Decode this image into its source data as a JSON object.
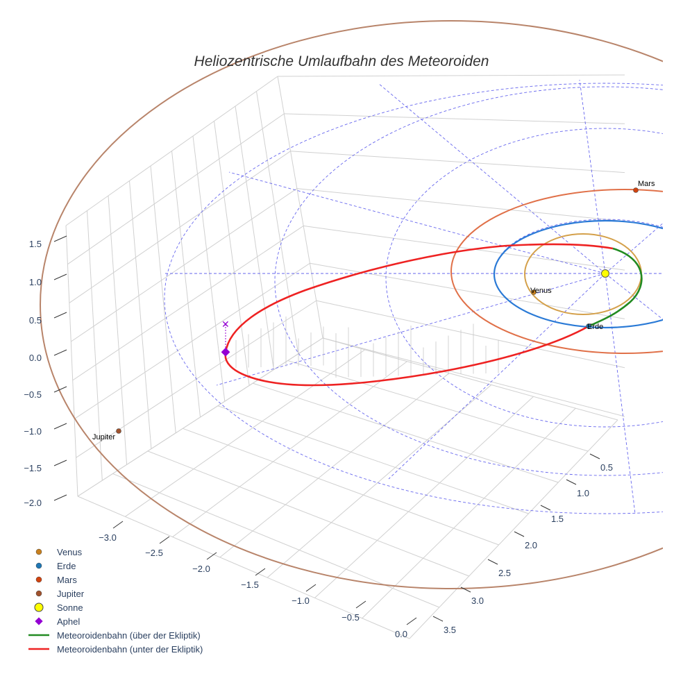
{
  "chart_data": {
    "type": "line",
    "title": "Heliozentrische Umlaufbahn des Meteoroiden",
    "xlabel": "",
    "ylabel": "",
    "zlabel": "",
    "x_ticks": [
      "−3.0",
      "−2.5",
      "−2.0",
      "−1.5",
      "−1.0",
      "−0.5",
      "0.0"
    ],
    "y_ticks": [
      "0.5",
      "1.0",
      "1.5",
      "2.0",
      "2.5",
      "3.0",
      "3.5"
    ],
    "z_ticks": [
      "1.5",
      "1.0",
      "0.5",
      "0.0",
      "−0.5",
      "−1.0",
      "−1.5",
      "−2.0"
    ],
    "xlim": [
      -3.3,
      0.2
    ],
    "ylim": [
      0.3,
      3.6
    ],
    "zlim": [
      -2.1,
      1.7
    ],
    "grid": true,
    "legend_position": "bottom-left",
    "point_labels": {
      "venus": "Venus",
      "erde": "Erde",
      "mars": "Mars",
      "jupiter": "Jupiter"
    },
    "legend": [
      {
        "name": "Venus",
        "symbol": "circle",
        "color": "#c8801e"
      },
      {
        "name": "Erde",
        "symbol": "circle",
        "color": "#1f77b4"
      },
      {
        "name": "Mars",
        "symbol": "circle",
        "color": "#d2430f"
      },
      {
        "name": "Jupiter",
        "symbol": "circle",
        "color": "#a0522d"
      },
      {
        "name": "Sonne",
        "symbol": "circle-large",
        "color": "#ffff00"
      },
      {
        "name": "Aphel",
        "symbol": "diamond",
        "color": "#9400d3"
      },
      {
        "name": "Meteoroidenbahn (über der Ekliptik)",
        "symbol": "line",
        "color": "#228b22"
      },
      {
        "name": "Meteoroidenbahn (unter der Ekliptik)",
        "symbol": "line",
        "color": "#ee2222"
      }
    ],
    "orbit_colors": {
      "venus": "#d4a04a",
      "erde": "#2a7ad6",
      "mars": "#e07048",
      "jupiter": "#b8846a",
      "grid": "#6666ee"
    }
  }
}
